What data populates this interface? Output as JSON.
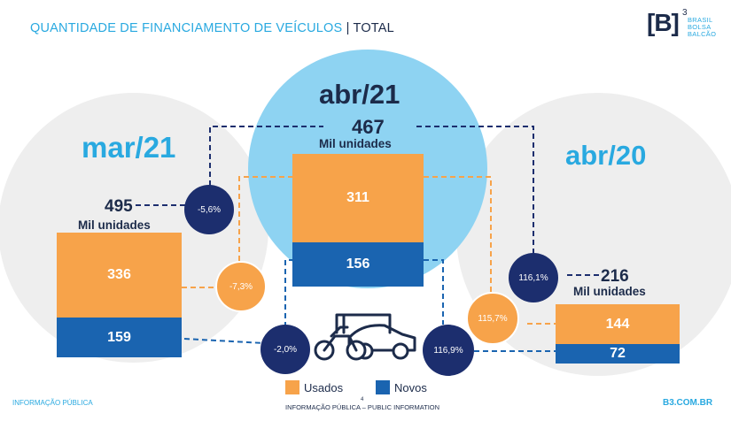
{
  "header": {
    "title_main": "QUANTIDADE DE FINANCIAMENTO DE VEÍCULOS",
    "title_sep": "|",
    "title_total": "TOTAL"
  },
  "logo": {
    "mark": "[B]",
    "superscript": "3",
    "line1": "BRASIL",
    "line2": "BOLSA",
    "line3": "BALCÃO"
  },
  "colors": {
    "used": "#f7a34a",
    "new": "#1a64b0",
    "dark_circle": "#1c2e6e",
    "bubble_light": "#eeeeee",
    "bubble_blue": "#8ed3f2",
    "accent": "#29a9e0"
  },
  "chart_data": {
    "type": "bar",
    "stacked": true,
    "categories": [
      "mar/21",
      "abr/21",
      "abr/20"
    ],
    "series": [
      {
        "name": "Usados",
        "values": [
          336,
          311,
          144
        ]
      },
      {
        "name": "Novos",
        "values": [
          159,
          156,
          72
        ]
      }
    ],
    "totals": [
      {
        "value": "495",
        "unit": "Mil unidades"
      },
      {
        "value": "467",
        "unit": "Mil unidades"
      },
      {
        "value": "216",
        "unit": "Mil unidades"
      }
    ],
    "comparisons": {
      "vs_mar21": {
        "total": "-5,6%",
        "used": "-7,3%",
        "new": "-2,0%"
      },
      "vs_abr20": {
        "total": "116,1%",
        "used": "115,7%",
        "new": "116,9%"
      }
    },
    "legend_position": "bottom-center"
  },
  "legend": {
    "used_label": "Usados",
    "new_label": "Novos"
  },
  "footer": {
    "left": "INFORMAÇÃO PÚBLICA",
    "center_number": "4",
    "center": "INFORMAÇÃO PÚBLICA – PUBLIC INFORMATION",
    "right": "B3.COM.BR"
  },
  "icons": {
    "vehicles": "vehicles-icon"
  }
}
